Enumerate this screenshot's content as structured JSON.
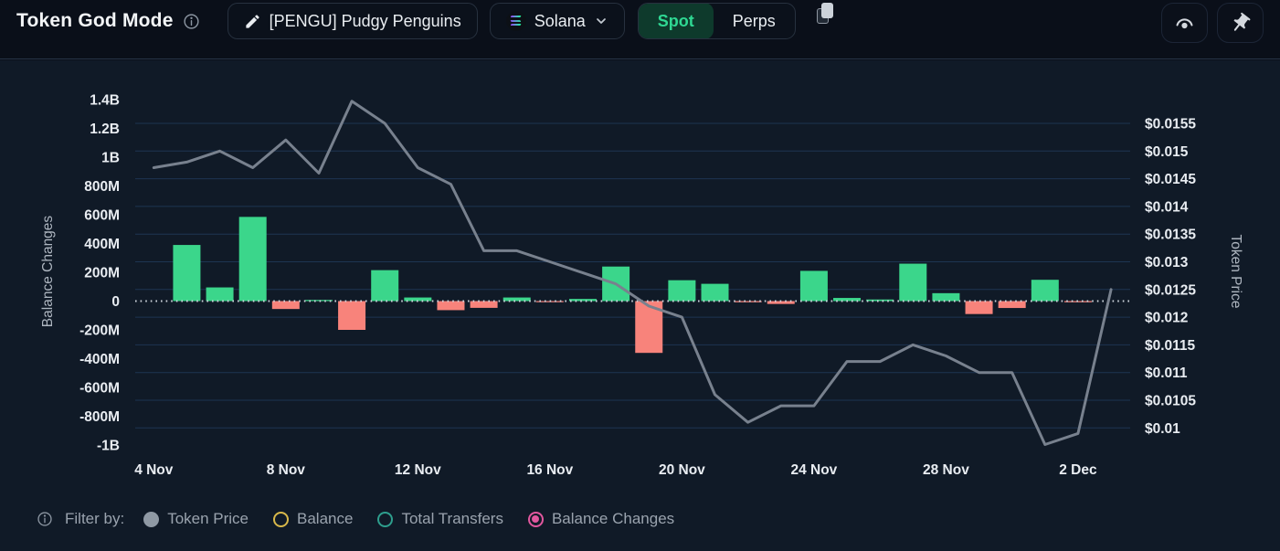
{
  "header": {
    "title": "Token God Mode",
    "token_pill": {
      "label": "[PENGU] Pudgy Penguins"
    },
    "chain_pill": {
      "label": "Solana"
    },
    "market_tabs": {
      "spot": "Spot",
      "perps": "Perps",
      "active": "Spot",
      "active_color": "#2fd893",
      "active_bg": "#0e3a2c"
    },
    "icons": [
      "info-icon",
      "edit-icon",
      "solana-icon",
      "chevron-down-icon",
      "copy-icon",
      "watch-icon",
      "pin-icon"
    ]
  },
  "filter_bar": {
    "label": "Filter by:",
    "options": [
      {
        "label": "Token Price",
        "marker": "filled",
        "color": "#8f99a4",
        "selected": false
      },
      {
        "label": "Balance",
        "marker": "ring",
        "color": "#d8b84a",
        "selected": false
      },
      {
        "label": "Total Transfers",
        "marker": "ring",
        "color": "#2e9e8d",
        "selected": false
      },
      {
        "label": "Balance Changes",
        "marker": "radio",
        "color": "#e1579e",
        "selected": true
      }
    ]
  },
  "chart_data": {
    "type": "combo",
    "x": [
      "4 Nov",
      "5 Nov",
      "6 Nov",
      "7 Nov",
      "8 Nov",
      "9 Nov",
      "10 Nov",
      "11 Nov",
      "12 Nov",
      "13 Nov",
      "14 Nov",
      "15 Nov",
      "16 Nov",
      "17 Nov",
      "18 Nov",
      "19 Nov",
      "20 Nov",
      "21 Nov",
      "22 Nov",
      "23 Nov",
      "24 Nov",
      "25 Nov",
      "26 Nov",
      "27 Nov",
      "28 Nov",
      "29 Nov",
      "30 Nov",
      "1 Dec",
      "2 Dec",
      "3 Dec"
    ],
    "x_axis_ticks": [
      "4 Nov",
      "8 Nov",
      "12 Nov",
      "16 Nov",
      "20 Nov",
      "24 Nov",
      "28 Nov",
      "2 Dec"
    ],
    "series": [
      {
        "name": "Balance Changes",
        "type": "bar",
        "axis": "left",
        "units": "millions",
        "color_positive": "#3bd68b",
        "color_negative": "#f8837b",
        "values_millions": [
          null,
          390,
          95,
          585,
          -55,
          8,
          -200,
          215,
          25,
          -63,
          -47,
          25,
          -6,
          15,
          240,
          -360,
          145,
          120,
          -8,
          -20,
          210,
          22,
          11,
          260,
          55,
          -90,
          -48,
          148,
          -8,
          null
        ]
      },
      {
        "name": "Token Price",
        "type": "line",
        "axis": "right",
        "color": "#78818e",
        "values": [
          0.0147,
          0.0148,
          0.015,
          0.0147,
          0.0152,
          0.0146,
          0.0159,
          0.0155,
          0.0147,
          0.0144,
          0.0132,
          0.0132,
          0.013,
          0.0128,
          0.0126,
          0.0122,
          0.012,
          0.0106,
          0.0101,
          0.0104,
          0.0104,
          0.0112,
          0.0112,
          0.0115,
          0.0113,
          0.011,
          0.011,
          0.0097,
          0.0099,
          0.0125
        ]
      }
    ],
    "left_axis": {
      "title": "Balance Changes",
      "ticks": [
        {
          "label": "1.4B",
          "value_millions": 1400
        },
        {
          "label": "1.2B",
          "value_millions": 1200
        },
        {
          "label": "1B",
          "value_millions": 1000
        },
        {
          "label": "800M",
          "value_millions": 800
        },
        {
          "label": "600M",
          "value_millions": 600
        },
        {
          "label": "400M",
          "value_millions": 400
        },
        {
          "label": "200M",
          "value_millions": 200
        },
        {
          "label": "0",
          "value_millions": 0
        },
        {
          "label": "-200M",
          "value_millions": -200
        },
        {
          "label": "-400M",
          "value_millions": -400
        },
        {
          "label": "-600M",
          "value_millions": -600
        },
        {
          "label": "-800M",
          "value_millions": -800
        },
        {
          "label": "-1B",
          "value_millions": -1000
        }
      ],
      "range_millions": [
        -1000,
        1400
      ]
    },
    "right_axis": {
      "title": "Token Price",
      "ticks": [
        {
          "label": "$0.0155",
          "value": 0.0155
        },
        {
          "label": "$0.015",
          "value": 0.015
        },
        {
          "label": "$0.0145",
          "value": 0.0145
        },
        {
          "label": "$0.014",
          "value": 0.014
        },
        {
          "label": "$0.0135",
          "value": 0.0135
        },
        {
          "label": "$0.013",
          "value": 0.013
        },
        {
          "label": "$0.0125",
          "value": 0.0125
        },
        {
          "label": "$0.012",
          "value": 0.012
        },
        {
          "label": "$0.0115",
          "value": 0.0115
        },
        {
          "label": "$0.011",
          "value": 0.011
        },
        {
          "label": "$0.0105",
          "value": 0.0105
        },
        {
          "label": "$0.01",
          "value": 0.01
        }
      ],
      "range": [
        0.01,
        0.0155
      ]
    },
    "grid": "horizontal",
    "zero_line": "dotted"
  }
}
